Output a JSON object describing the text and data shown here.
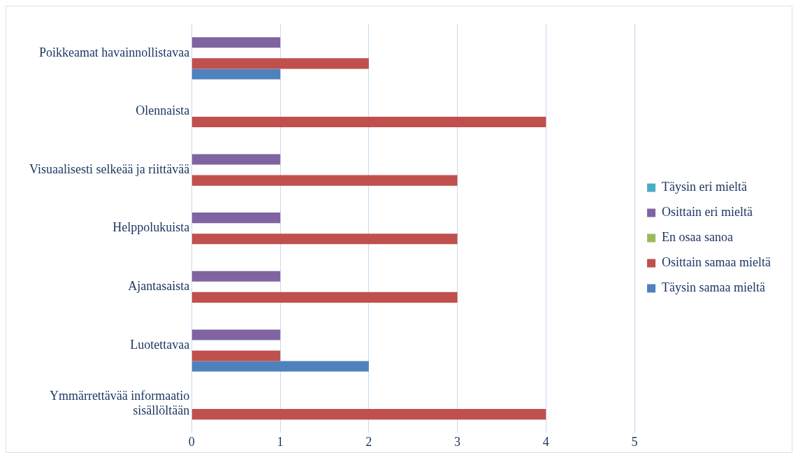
{
  "chart_data": {
    "type": "bar",
    "orientation": "horizontal",
    "categories": [
      "Poikkeamat havainnollistavaa",
      "Olennaista",
      "Visuaalisesti selkeää ja riittävää",
      "Helppolukuista",
      "Ajantasaista",
      "Luotettavaa",
      "Ymmärrettävää informaatio sisällöltään"
    ],
    "series": [
      {
        "name": "Täysin eri mieltä",
        "color": "#4bacc6",
        "values": [
          0,
          0,
          0,
          0,
          0,
          0,
          0
        ]
      },
      {
        "name": "Osittain eri mieltä",
        "color": "#8064a2",
        "values": [
          1,
          0,
          1,
          1,
          1,
          1,
          0
        ]
      },
      {
        "name": "En osaa sanoa",
        "color": "#9bbb59",
        "values": [
          0,
          0,
          0,
          0,
          0,
          0,
          0
        ]
      },
      {
        "name": "Osittain samaa mieltä",
        "color": "#c0504d",
        "values": [
          2,
          4,
          3,
          3,
          3,
          1,
          4
        ]
      },
      {
        "name": "Täysin samaa mieltä",
        "color": "#4f81bd",
        "values": [
          1,
          0,
          0,
          0,
          0,
          2,
          0
        ]
      }
    ],
    "xlim": [
      0,
      5
    ],
    "xticks": [
      0,
      1,
      2,
      3,
      4,
      5
    ],
    "grid": "x",
    "legend": "right"
  }
}
